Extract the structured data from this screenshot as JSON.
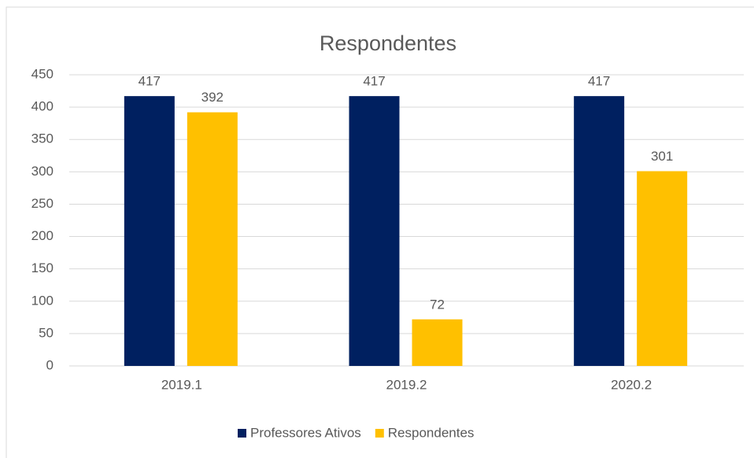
{
  "chart_data": {
    "type": "bar",
    "title": "Respondentes",
    "categories": [
      "2019.1",
      "2019.2",
      "2020.2"
    ],
    "series": [
      {
        "name": "Professores Ativos",
        "color": "#002060",
        "values": [
          417,
          417,
          417
        ]
      },
      {
        "name": "Respondentes",
        "color": "#ffc000",
        "values": [
          392,
          72,
          301
        ]
      }
    ],
    "ylim": [
      0,
      450
    ],
    "yticks": [
      0,
      50,
      100,
      150,
      200,
      250,
      300,
      350,
      400,
      450
    ],
    "grid": true,
    "legend": "bottom"
  }
}
